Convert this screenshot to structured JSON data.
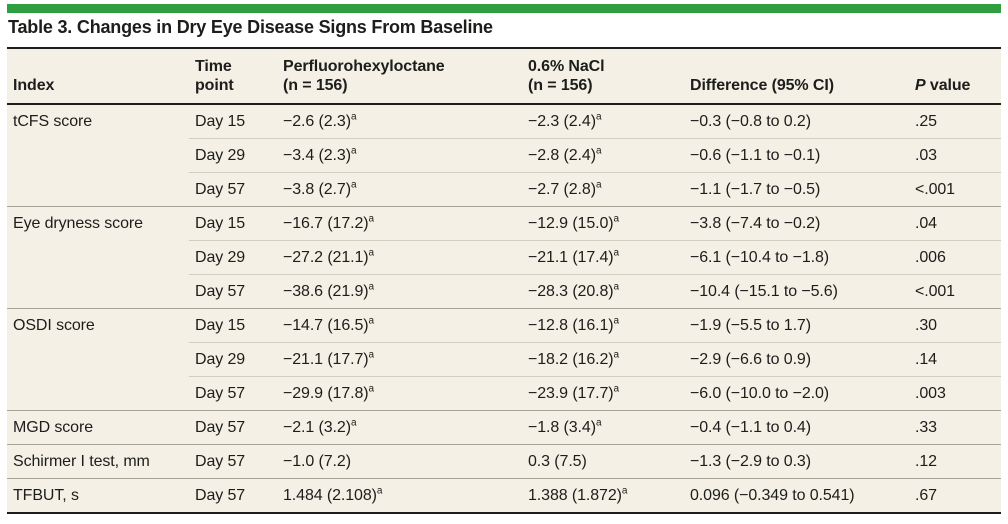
{
  "title": "Table 3. Changes in Dry Eye Disease Signs From Baseline",
  "colors": {
    "accent_green": "#2f9e41",
    "table_background": "#f4f0e5",
    "rule_dark": "#1d1d1b",
    "rule_group": "#a7a496",
    "rule_sub": "#d2cfc2"
  },
  "table": {
    "header": {
      "index": "Index",
      "time_point_line1": "Time",
      "time_point_line2": "point",
      "drug_line1": "Perfluorohexyloctane",
      "drug_line2": "(n = 156)",
      "nacl_line1": "0.6% NaCl",
      "nacl_line2": "(n = 156)",
      "difference": "Difference (95% CI)",
      "p_italic": "P",
      "p_rest": " value"
    },
    "rows": [
      {
        "index": "tCFS score",
        "group_start": true,
        "time_point": "Day 15",
        "drug": "−2.6 (2.3)",
        "drug_sup": "a",
        "nacl": "−2.3 (2.4)",
        "nacl_sup": "a",
        "difference": "−0.3 (−0.8 to 0.2)",
        "p_value": ".25"
      },
      {
        "index": "",
        "group_start": false,
        "time_point": "Day 29",
        "drug": "−3.4 (2.3)",
        "drug_sup": "a",
        "nacl": "−2.8 (2.4)",
        "nacl_sup": "a",
        "difference": "−0.6 (−1.1 to −0.1)",
        "p_value": ".03"
      },
      {
        "index": "",
        "group_start": false,
        "time_point": "Day 57",
        "drug": "−3.8 (2.7)",
        "drug_sup": "a",
        "nacl": "−2.7 (2.8)",
        "nacl_sup": "a",
        "difference": "−1.1 (−1.7 to −0.5)",
        "p_value": "<.001"
      },
      {
        "index": "Eye dryness score",
        "group_start": true,
        "time_point": "Day 15",
        "drug": "−16.7 (17.2)",
        "drug_sup": "a",
        "nacl": "−12.9 (15.0)",
        "nacl_sup": "a",
        "difference": "−3.8 (−7.4 to −0.2)",
        "p_value": ".04"
      },
      {
        "index": "",
        "group_start": false,
        "time_point": "Day 29",
        "drug": "−27.2 (21.1)",
        "drug_sup": "a",
        "nacl": "−21.1 (17.4)",
        "nacl_sup": "a",
        "difference": "−6.1 (−10.4 to −1.8)",
        "p_value": ".006"
      },
      {
        "index": "",
        "group_start": false,
        "time_point": "Day 57",
        "drug": "−38.6 (21.9)",
        "drug_sup": "a",
        "nacl": "−28.3 (20.8)",
        "nacl_sup": "a",
        "difference": "−10.4 (−15.1 to −5.6)",
        "p_value": "<.001"
      },
      {
        "index": "OSDI score",
        "group_start": true,
        "time_point": "Day 15",
        "drug": "−14.7 (16.5)",
        "drug_sup": "a",
        "nacl": "−12.8 (16.1)",
        "nacl_sup": "a",
        "difference": "−1.9 (−5.5 to 1.7)",
        "p_value": ".30"
      },
      {
        "index": "",
        "group_start": false,
        "time_point": "Day 29",
        "drug": "−21.1 (17.7)",
        "drug_sup": "a",
        "nacl": "−18.2 (16.2)",
        "nacl_sup": "a",
        "difference": "−2.9 (−6.6 to 0.9)",
        "p_value": ".14"
      },
      {
        "index": "",
        "group_start": false,
        "time_point": "Day 57",
        "drug": "−29.9 (17.8)",
        "drug_sup": "a",
        "nacl": "−23.9 (17.7)",
        "nacl_sup": "a",
        "difference": "−6.0 (−10.0 to −2.0)",
        "p_value": ".003"
      },
      {
        "index": "MGD score",
        "group_start": true,
        "time_point": "Day 57",
        "drug": "−2.1 (3.2)",
        "drug_sup": "a",
        "nacl": "−1.8 (3.4)",
        "nacl_sup": "a",
        "difference": "−0.4 (−1.1 to 0.4)",
        "p_value": ".33"
      },
      {
        "index": "Schirmer I test, mm",
        "group_start": true,
        "time_point": "Day 57",
        "drug": "−1.0 (7.2)",
        "drug_sup": "",
        "nacl": "0.3 (7.5)",
        "nacl_sup": "",
        "difference": "−1.3 (−2.9 to 0.3)",
        "p_value": ".12"
      },
      {
        "index": "TFBUT, s",
        "group_start": true,
        "time_point": "Day 57",
        "drug": "1.484 (2.108)",
        "drug_sup": "a",
        "nacl": "1.388 (1.872)",
        "nacl_sup": "a",
        "difference": "0.096 (−0.349 to 0.541)",
        "p_value": ".67"
      }
    ]
  }
}
